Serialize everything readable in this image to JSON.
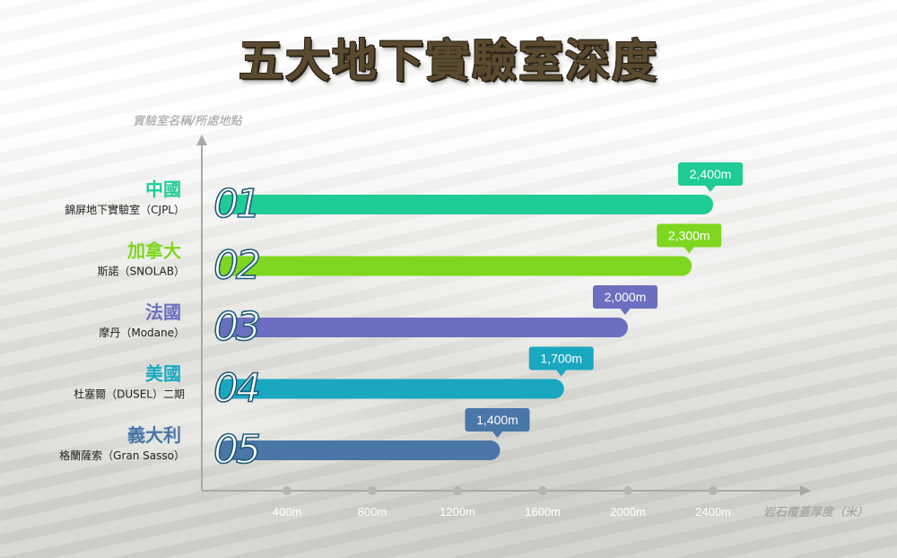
{
  "title": "五大地下實驗室深度",
  "chart_data": {
    "type": "bar",
    "orientation": "horizontal",
    "ylabel": "實驗室名稱/所處地點",
    "xlabel": "岩石覆蓋厚度（米）",
    "xlim": [
      0,
      2600
    ],
    "xticks": [
      {
        "value": 400,
        "label": "400m"
      },
      {
        "value": 800,
        "label": "800m"
      },
      {
        "value": 1200,
        "label": "1200m"
      },
      {
        "value": 1600,
        "label": "1600m"
      },
      {
        "value": 2000,
        "label": "2000m"
      },
      {
        "value": 2400,
        "label": "2400m"
      }
    ],
    "bars": [
      {
        "rank": "01",
        "country": "中國",
        "lab": "錦屏地下實驗室（CJPL）",
        "value": 2400,
        "value_label": "2,400m",
        "color": "#1fcc96"
      },
      {
        "rank": "02",
        "country": "加拿大",
        "lab": "斯諾（SNOLAB）",
        "value": 2300,
        "value_label": "2,300m",
        "color": "#7fd620"
      },
      {
        "rank": "03",
        "country": "法國",
        "lab": "摩丹（Modane）",
        "value": 2000,
        "value_label": "2,000m",
        "color": "#6c6fc0"
      },
      {
        "rank": "04",
        "country": "美國",
        "lab": "杜塞爾（DUSEL）二期",
        "value": 1700,
        "value_label": "1,700m",
        "color": "#1aa7c0"
      },
      {
        "rank": "05",
        "country": "義大利",
        "lab": "格蘭薩索（Gran Sasso）",
        "value": 1400,
        "value_label": "1,400m",
        "color": "#4a76a8"
      }
    ],
    "axis_color": "#a8a8a8",
    "rank_color": "#1f5b79",
    "grid": false
  }
}
